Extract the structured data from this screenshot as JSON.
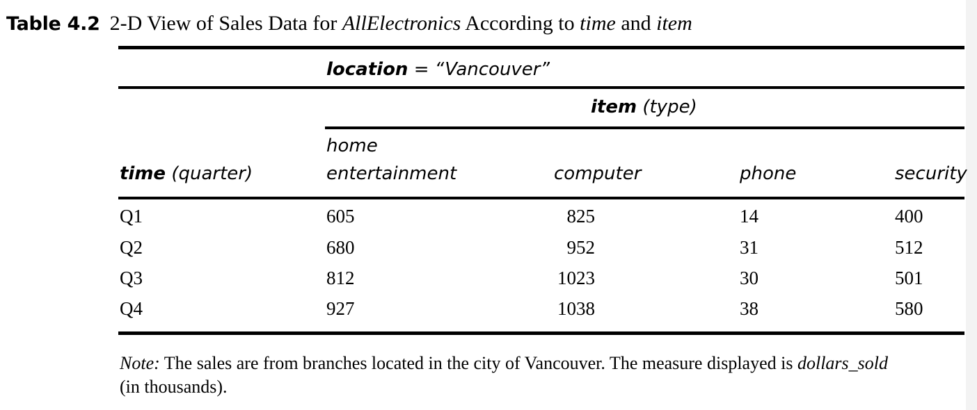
{
  "caption": {
    "label": "Table 4.2",
    "text_1": "2-D View of Sales Data for",
    "text_2": "AllElectronics",
    "text_3": "According to",
    "text_4": "time",
    "text_5": "and",
    "text_6": "item"
  },
  "header": {
    "location_label": "location",
    "location_eq": "=",
    "location_value": "“Vancouver”",
    "item_label": "item",
    "item_unit": "(type)",
    "time_label": "time",
    "time_unit": "(quarter)",
    "col_home_line1": "home",
    "col_home_line2": "entertainment",
    "col_computer": "computer",
    "col_phone": "phone",
    "col_security": "security"
  },
  "rows": [
    {
      "quarter": "Q1",
      "home": "605",
      "computer": "825",
      "phone": "14",
      "security": "400"
    },
    {
      "quarter": "Q2",
      "home": "680",
      "computer": "952",
      "phone": "31",
      "security": "512"
    },
    {
      "quarter": "Q3",
      "home": "812",
      "computer": "1023",
      "phone": "30",
      "security": "501"
    },
    {
      "quarter": "Q4",
      "home": "927",
      "computer": "1038",
      "phone": "38",
      "security": "580"
    }
  ],
  "note": {
    "label": "Note:",
    "text_1": "The sales are from branches located in the city of Vancouver. The measure displayed is",
    "measure": "dollars_sold",
    "text_2": "(in thousands)."
  }
}
